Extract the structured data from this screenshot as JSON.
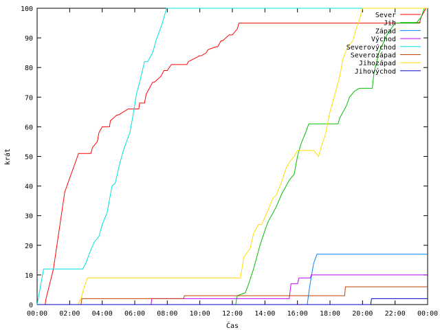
{
  "chart_data": {
    "type": "line",
    "xlabel": "Čas",
    "ylabel": "krát",
    "xlim": [
      0,
      24
    ],
    "ylim": [
      0,
      100
    ],
    "x_ticks": [
      {
        "value": 0,
        "label": "00:00"
      },
      {
        "value": 2,
        "label": "02:00"
      },
      {
        "value": 4,
        "label": "04:00"
      },
      {
        "value": 6,
        "label": "06:00"
      },
      {
        "value": 8,
        "label": "08:00"
      },
      {
        "value": 10,
        "label": "10:00"
      },
      {
        "value": 12,
        "label": "12:00"
      },
      {
        "value": 14,
        "label": "14:00"
      },
      {
        "value": 16,
        "label": "16:00"
      },
      {
        "value": 18,
        "label": "18:00"
      },
      {
        "value": 20,
        "label": "20:00"
      },
      {
        "value": 22,
        "label": "22:00"
      },
      {
        "value": 24,
        "label": "00:00"
      }
    ],
    "y_ticks": [
      0,
      10,
      20,
      30,
      40,
      50,
      60,
      70,
      80,
      90,
      100
    ],
    "grid": false,
    "legend_position": "top-right",
    "series": [
      {
        "name": "Sever",
        "color": "#ff0000",
        "x": [
          0.0,
          0.5,
          0.55,
          1.0,
          1.7,
          2.55,
          2.6,
          3.3,
          3.4,
          3.7,
          3.8,
          3.9,
          4.0,
          4.45,
          4.5,
          4.9,
          5.0,
          5.6,
          5.7,
          6.25,
          6.3,
          6.6,
          6.7,
          7.1,
          7.2,
          7.6,
          7.8,
          8.0,
          8.25,
          8.3,
          9.2,
          9.3,
          10.0,
          10.1,
          10.4,
          10.5,
          11.0,
          11.1,
          11.3,
          11.4,
          11.8,
          12.0,
          12.3,
          12.4,
          23.5,
          23.6,
          23.9,
          24.0
        ],
        "y": [
          0,
          0,
          2,
          12,
          38,
          51,
          51,
          51,
          53,
          55,
          58,
          59,
          60,
          60,
          62,
          64,
          64,
          66,
          66,
          66,
          68,
          68,
          71,
          75,
          75,
          77,
          79,
          79,
          81,
          81,
          81,
          82,
          84,
          84,
          85,
          86,
          87,
          87,
          89,
          89,
          91,
          91,
          93,
          95,
          95,
          97,
          100,
          100
        ]
      },
      {
        "name": "Jih",
        "color": "#00c000",
        "x": [
          0.0,
          12.2,
          12.3,
          12.8,
          13.0,
          13.3,
          13.5,
          13.7,
          14.0,
          14.2,
          14.5,
          14.7,
          15.0,
          15.3,
          15.5,
          15.8,
          16.0,
          16.2,
          16.5,
          16.7,
          17.0,
          17.3,
          18.5,
          18.6,
          19.0,
          19.2,
          19.5,
          19.8,
          20.0,
          20.6,
          20.7,
          21.0,
          21.5,
          22.0,
          22.5,
          23.0,
          23.3,
          23.6,
          23.8,
          24.0
        ],
        "y": [
          0,
          0,
          3,
          4,
          7,
          12,
          16,
          20,
          25,
          28,
          31,
          33,
          37,
          40,
          42,
          44,
          50,
          54,
          58,
          61,
          61,
          61,
          61,
          63,
          67,
          70,
          72,
          73,
          73,
          73,
          78,
          85,
          91,
          95,
          95,
          95,
          95,
          97,
          100,
          100
        ]
      },
      {
        "name": "Západ",
        "color": "#0080ff",
        "x": [
          0.0,
          16.6,
          16.75,
          16.9,
          17.0,
          17.2,
          24.0
        ],
        "y": [
          0,
          0,
          6,
          11,
          14,
          17,
          17
        ]
      },
      {
        "name": "Východ",
        "color": "#c000ff",
        "x": [
          0.0,
          7.0,
          7.05,
          15.5,
          15.6,
          16.0,
          16.1,
          16.8,
          16.85,
          24.0
        ],
        "y": [
          0,
          0,
          2,
          2,
          7,
          7,
          9,
          9,
          10,
          10
        ]
      },
      {
        "name": "Severovýchod",
        "color": "#00e0e0",
        "x": [
          0.0,
          0.4,
          1.2,
          2.8,
          3.0,
          3.2,
          3.5,
          3.8,
          4.0,
          4.3,
          4.6,
          4.8,
          5.1,
          5.3,
          5.7,
          5.9,
          6.1,
          6.3,
          6.6,
          6.8,
          7.1,
          7.3,
          7.7,
          7.95,
          24.0
        ],
        "y": [
          0,
          12,
          12,
          12,
          14,
          17,
          21,
          23,
          27,
          31,
          40,
          41,
          48,
          52,
          58,
          64,
          71,
          75,
          82,
          82,
          85,
          89,
          95,
          100,
          100
        ]
      },
      {
        "name": "Severozápad",
        "color": "#c04000",
        "x": [
          0.0,
          2.7,
          2.75,
          9.0,
          9.05,
          18.9,
          18.95,
          24.0
        ],
        "y": [
          0,
          0,
          2,
          2,
          3,
          3,
          6,
          6
        ]
      },
      {
        "name": "Jihozápad",
        "color": "#ffdd00",
        "x": [
          0.0,
          2.5,
          2.7,
          2.9,
          3.1,
          5.0,
          10.0,
          12.0,
          12.5,
          12.7,
          13.1,
          13.3,
          13.6,
          13.8,
          14.2,
          14.5,
          14.7,
          15.0,
          15.3,
          15.5,
          15.8,
          16.0,
          16.2,
          17.0,
          17.3,
          17.5,
          17.7,
          18.0,
          18.3,
          18.6,
          18.8,
          19.1,
          19.4,
          19.6,
          19.8,
          20.0,
          24.0
        ],
        "y": [
          0,
          0,
          2,
          6,
          9,
          9,
          9,
          9,
          9,
          16,
          19,
          24,
          27,
          27,
          32,
          36,
          37,
          41,
          46,
          48,
          50,
          52,
          52,
          52,
          50,
          54,
          57,
          65,
          71,
          77,
          83,
          87,
          89,
          93,
          96,
          100,
          100
        ]
      },
      {
        "name": "Jihovýchod",
        "color": "#0000c0",
        "x": [
          0.0,
          20.5,
          20.55,
          24.0
        ],
        "y": [
          0,
          0,
          2,
          2
        ]
      }
    ]
  }
}
